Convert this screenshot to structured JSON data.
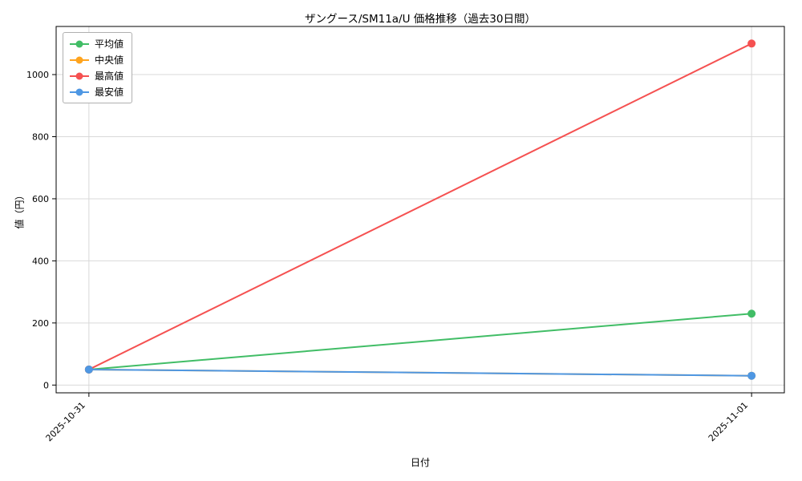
{
  "chart_data": {
    "type": "line",
    "title": "ザングース/SM11a/U 価格推移（過去30日間）",
    "xlabel": "日付",
    "ylabel": "値（円）",
    "x": [
      "2025-10-31",
      "2025-11-01"
    ],
    "series": [
      {
        "name": "平均値",
        "color": "#41bd66",
        "values": [
          50,
          230
        ]
      },
      {
        "name": "中央値",
        "color": "#ffa41e",
        "values": [
          50,
          30
        ]
      },
      {
        "name": "最高値",
        "color": "#f55151",
        "values": [
          50,
          1100
        ]
      },
      {
        "name": "最安値",
        "color": "#4e97e3",
        "values": [
          50,
          30
        ]
      }
    ],
    "yticks": [
      0,
      200,
      400,
      600,
      800,
      1000
    ],
    "ylim": [
      -25,
      1155
    ],
    "grid": true,
    "legend_position": "upper-left",
    "colors": {
      "grid": "#d9d9d9",
      "spine": "#000000",
      "background": "#ffffff"
    }
  }
}
